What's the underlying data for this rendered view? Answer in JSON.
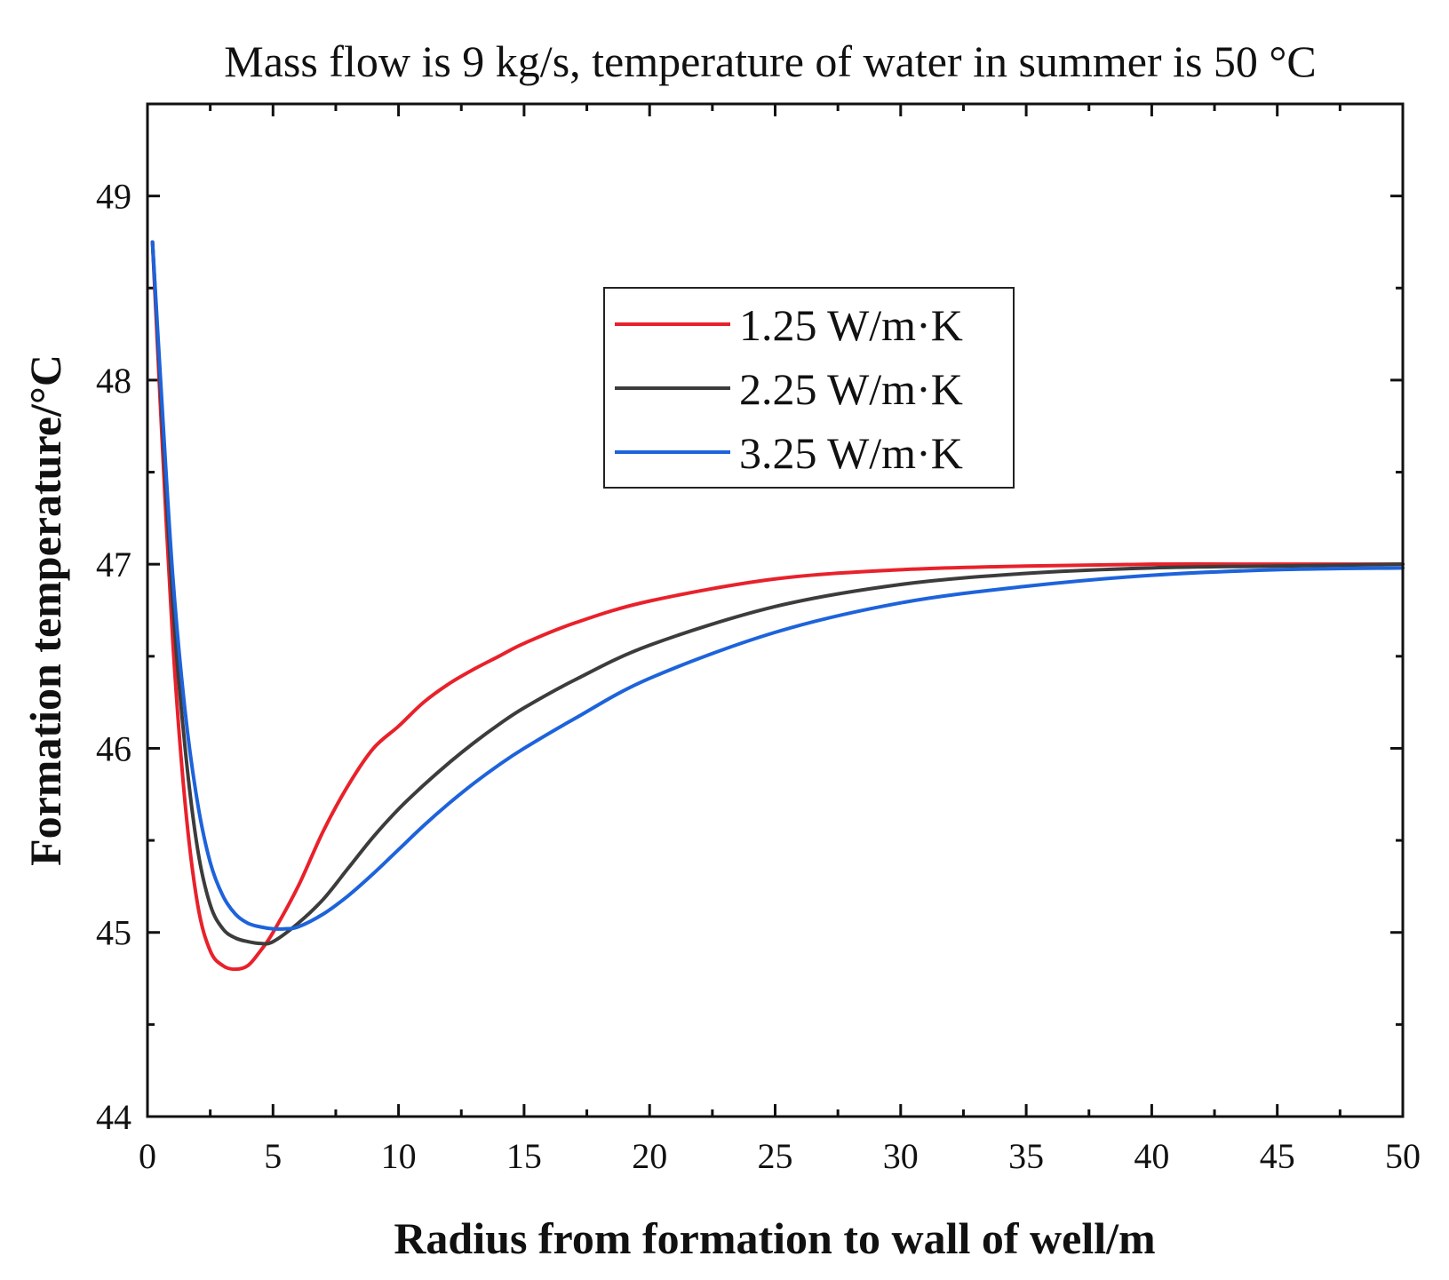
{
  "chart_data": {
    "type": "line",
    "title": "Mass flow is 9 kg/s, temperature of water in summer is 50 °C",
    "xlabel": "Radius from formation to wall of well/m",
    "ylabel": "Formation temperature/°C",
    "xlim": [
      0,
      50
    ],
    "ylim": [
      44,
      49.5
    ],
    "xticks": [
      0,
      5,
      10,
      15,
      20,
      25,
      30,
      35,
      40,
      45,
      50
    ],
    "yticks": [
      44,
      45,
      46,
      47,
      48,
      49
    ],
    "grid": false,
    "legend_position": "top-center",
    "series": [
      {
        "name": "1.25 W/m·K",
        "color": "#e8212b",
        "x": [
          0.2,
          0.5,
          1,
          1.5,
          2,
          2.5,
          3,
          3.5,
          4,
          4.5,
          5,
          6,
          7,
          8,
          9,
          10,
          11,
          12,
          13,
          14,
          15,
          17,
          20,
          25,
          30,
          35,
          40,
          45,
          50
        ],
        "y": [
          48.75,
          47.9,
          46.6,
          45.7,
          45.15,
          44.9,
          44.82,
          44.8,
          44.82,
          44.9,
          45.0,
          45.25,
          45.55,
          45.8,
          46.0,
          46.12,
          46.25,
          46.35,
          46.43,
          46.5,
          46.57,
          46.68,
          46.8,
          46.92,
          46.97,
          46.99,
          47.0,
          47.0,
          47.0
        ]
      },
      {
        "name": "2.25 W/m·K",
        "color": "#3c3c3c",
        "x": [
          0.2,
          0.5,
          1,
          1.5,
          2,
          2.5,
          3,
          3.5,
          4,
          4.5,
          5,
          6,
          7,
          8,
          9,
          10,
          11,
          12,
          13,
          14,
          15,
          17,
          20,
          25,
          30,
          35,
          40,
          45,
          50
        ],
        "y": [
          48.75,
          48.0,
          46.8,
          46.0,
          45.45,
          45.15,
          45.02,
          44.97,
          44.95,
          44.94,
          44.95,
          45.05,
          45.18,
          45.35,
          45.52,
          45.67,
          45.8,
          45.92,
          46.03,
          46.13,
          46.22,
          46.37,
          46.56,
          46.77,
          46.89,
          46.95,
          46.98,
          46.99,
          47.0
        ]
      },
      {
        "name": "3.25 W/m·K",
        "color": "#1d63db",
        "x": [
          0.2,
          0.5,
          1,
          1.5,
          2,
          2.5,
          3,
          3.5,
          4,
          4.5,
          5,
          5.5,
          6,
          7,
          8,
          9,
          10,
          11,
          12,
          13,
          14,
          15,
          17,
          20,
          25,
          30,
          35,
          40,
          45,
          50
        ],
        "y": [
          48.75,
          48.05,
          46.95,
          46.2,
          45.7,
          45.38,
          45.2,
          45.1,
          45.05,
          45.03,
          45.02,
          45.02,
          45.03,
          45.1,
          45.2,
          45.32,
          45.45,
          45.58,
          45.7,
          45.81,
          45.91,
          46.0,
          46.16,
          46.38,
          46.63,
          46.79,
          46.88,
          46.94,
          46.97,
          46.98
        ]
      }
    ]
  }
}
